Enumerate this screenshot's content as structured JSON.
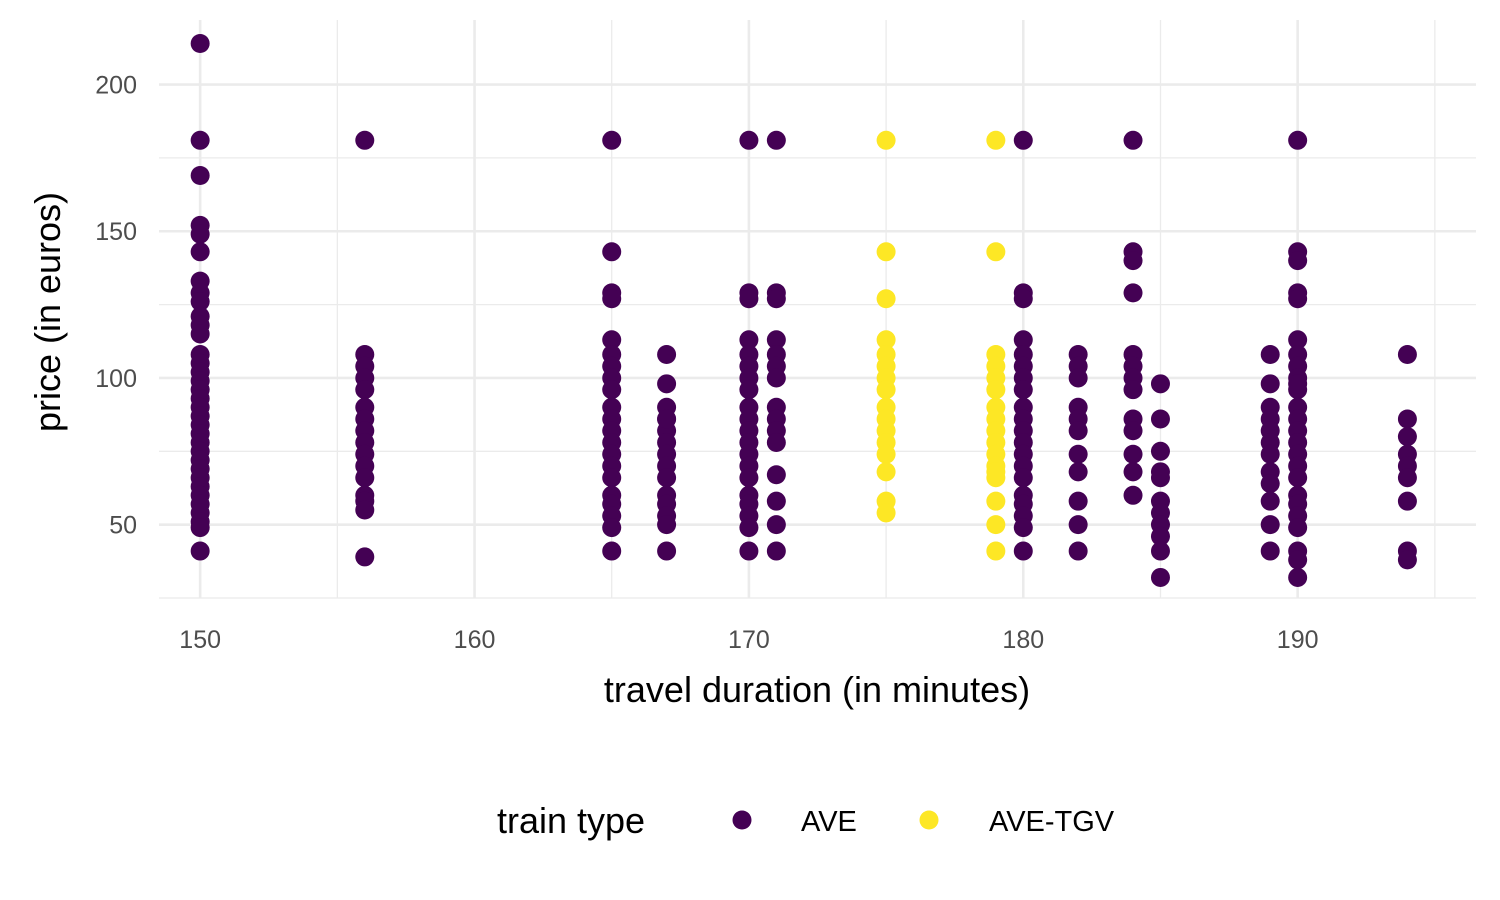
{
  "chart_data": {
    "type": "scatter",
    "xlabel": "travel duration (in minutes)",
    "ylabel": "price (in euros)",
    "xlim": [
      148.5,
      196.5
    ],
    "ylim": [
      25,
      222
    ],
    "x_ticks": [
      150,
      160,
      170,
      180,
      190
    ],
    "y_ticks": [
      50,
      100,
      150,
      200
    ],
    "grid": true,
    "legend": {
      "title": "train type",
      "position": "bottom"
    },
    "colors": {
      "AVE": "#440154",
      "AVE-TGV": "#FDE725",
      "grid": "#ebebeb"
    },
    "series": [
      {
        "name": "AVE",
        "x": [
          150,
          150,
          150,
          150,
          150,
          150,
          150,
          150,
          150,
          150,
          150,
          150,
          150,
          150,
          150,
          150,
          150,
          150,
          150,
          150,
          150,
          150,
          150,
          150,
          150,
          150,
          150,
          150,
          150,
          150,
          150,
          150,
          150,
          150,
          156,
          156,
          156,
          156,
          156,
          156,
          156,
          156,
          156,
          156,
          156,
          156,
          156,
          156,
          156,
          156,
          165,
          165,
          165,
          165,
          165,
          165,
          165,
          165,
          165,
          165,
          165,
          165,
          165,
          165,
          165,
          165,
          165,
          165,
          165,
          165,
          165,
          167,
          167,
          167,
          167,
          167,
          167,
          167,
          167,
          167,
          167,
          167,
          167,
          167,
          167,
          167,
          170,
          170,
          170,
          170,
          170,
          170,
          170,
          170,
          170,
          170,
          170,
          170,
          170,
          170,
          170,
          170,
          170,
          170,
          170,
          170,
          171,
          171,
          171,
          171,
          171,
          171,
          171,
          171,
          171,
          171,
          171,
          171,
          171,
          171,
          171,
          180,
          180,
          180,
          180,
          180,
          180,
          180,
          180,
          180,
          180,
          180,
          180,
          180,
          180,
          180,
          180,
          180,
          180,
          180,
          180,
          182,
          182,
          182,
          182,
          182,
          182,
          182,
          182,
          182,
          182,
          182,
          184,
          184,
          184,
          184,
          184,
          184,
          184,
          184,
          184,
          184,
          184,
          184,
          184,
          185,
          185,
          185,
          185,
          185,
          185,
          185,
          185,
          185,
          185,
          185,
          189,
          189,
          189,
          189,
          189,
          189,
          189,
          189,
          189,
          189,
          189,
          189,
          190,
          190,
          190,
          190,
          190,
          190,
          190,
          190,
          190,
          190,
          190,
          190,
          190,
          190,
          190,
          190,
          190,
          190,
          190,
          190,
          190,
          190,
          190,
          190,
          190,
          194,
          194,
          194,
          194,
          194,
          194,
          194,
          194,
          194
        ],
        "y": [
          214,
          181,
          169,
          152,
          149,
          143,
          133,
          129,
          126,
          121,
          118,
          115,
          108,
          105,
          102,
          99,
          96,
          93,
          90,
          87,
          84,
          81,
          78,
          75,
          72,
          69,
          66,
          63,
          60,
          57,
          54,
          51,
          49,
          41,
          108,
          104,
          100,
          96,
          90,
          86,
          82,
          78,
          74,
          70,
          66,
          60,
          58,
          55,
          39,
          181,
          181,
          143,
          129,
          127,
          113,
          108,
          104,
          100,
          96,
          90,
          86,
          82,
          78,
          74,
          70,
          66,
          60,
          57,
          53,
          49,
          41,
          108,
          98,
          90,
          86,
          82,
          78,
          74,
          70,
          66,
          60,
          57,
          53,
          50,
          41,
          86,
          181,
          129,
          127,
          113,
          108,
          104,
          100,
          96,
          90,
          86,
          82,
          78,
          74,
          70,
          66,
          60,
          57,
          53,
          49,
          41,
          181,
          129,
          127,
          113,
          108,
          104,
          100,
          90,
          86,
          82,
          78,
          67,
          58,
          50,
          41,
          181,
          129,
          127,
          113,
          108,
          104,
          100,
          90,
          86,
          82,
          78,
          74,
          70,
          66,
          60,
          57,
          53,
          49,
          41,
          96,
          108,
          104,
          100,
          90,
          86,
          82,
          74,
          68,
          58,
          50,
          41,
          181,
          143,
          140,
          129,
          108,
          104,
          100,
          96,
          86,
          82,
          74,
          68,
          60,
          98,
          86,
          75,
          68,
          66,
          58,
          54,
          50,
          46,
          41,
          32,
          108,
          98,
          90,
          86,
          82,
          78,
          74,
          68,
          64,
          58,
          50,
          41,
          181,
          143,
          140,
          129,
          127,
          113,
          108,
          104,
          100,
          96,
          90,
          86,
          82,
          78,
          74,
          70,
          66,
          60,
          57,
          53,
          49,
          41,
          38,
          32,
          98,
          108,
          86,
          80,
          74,
          70,
          66,
          58,
          41,
          38
        ]
      },
      {
        "name": "AVE-TGV",
        "x": [
          175,
          175,
          175,
          175,
          175,
          175,
          175,
          175,
          175,
          175,
          175,
          175,
          175,
          175,
          175,
          175,
          179,
          179,
          179,
          179,
          179,
          179,
          179,
          179,
          179,
          179,
          179,
          179,
          179,
          179,
          179,
          179,
          179
        ],
        "y": [
          181,
          143,
          127,
          113,
          108,
          104,
          100,
          96,
          90,
          86,
          82,
          78,
          74,
          68,
          58,
          54,
          181,
          143,
          108,
          104,
          100,
          96,
          90,
          86,
          82,
          78,
          74,
          70,
          66,
          58,
          50,
          41,
          68
        ]
      }
    ]
  }
}
